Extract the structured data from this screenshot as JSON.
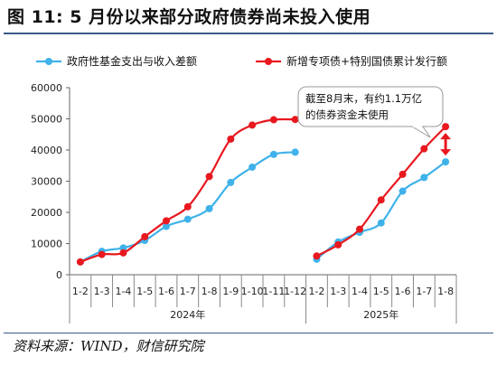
{
  "header": {
    "title": "图 11:  5 月份以来部分政府债券尚未投入使用"
  },
  "footer": {
    "source": "资料来源：WIND，财信研究院"
  },
  "annotation": {
    "line1": "截至8月末，有约1.1万亿",
    "line2": "的债券资金未使用"
  },
  "colors": {
    "series1": "#3fb2ea",
    "series2": "#e8181f",
    "rule": "#3c5a8a",
    "arrow": "#e8181f"
  },
  "chart_data": {
    "type": "line",
    "title": "图 11:  5 月份以来部分政府债券尚未投入使用",
    "ylim": [
      0,
      60000
    ],
    "yticks": [
      0,
      10000,
      20000,
      30000,
      40000,
      50000,
      60000
    ],
    "groups": [
      {
        "label": "2024年",
        "categories": [
          "1-2",
          "1-3",
          "1-4",
          "1-5",
          "1-6",
          "1-7",
          "1-8",
          "1-9",
          "1-10",
          "1-11",
          "1-12"
        ],
        "series": [
          {
            "name": "政府性基金支出与收入差额",
            "values": [
              4100,
              7500,
              8600,
              11000,
              15500,
              17800,
              21200,
              29600,
              34500,
              38600,
              39300
            ]
          },
          {
            "name": "新增专项债+特别国债累计发行额",
            "values": [
              4100,
              6500,
              7000,
              12200,
              17300,
              21800,
              31500,
              43500,
              48000,
              49700,
              49800
            ]
          }
        ]
      },
      {
        "label": "2025年",
        "categories": [
          "1-2",
          "1-3",
          "1-4",
          "1-5",
          "1-6",
          "1-7",
          "1-8"
        ],
        "series": [
          {
            "name": "政府性基金支出与收入差额",
            "values": [
              5000,
              10500,
              13600,
              16600,
              26800,
              31200,
              36200
            ]
          },
          {
            "name": "新增专项债+特别国债累计发行额",
            "values": [
              6000,
              9600,
              14600,
              24000,
              32200,
              40400,
              47500
            ]
          }
        ]
      }
    ],
    "legend": [
      {
        "name": "政府性基金支出与收入差额"
      },
      {
        "name": "新增专项债+特别国债累计发行额"
      }
    ],
    "legend_position": "top",
    "grid": false
  }
}
